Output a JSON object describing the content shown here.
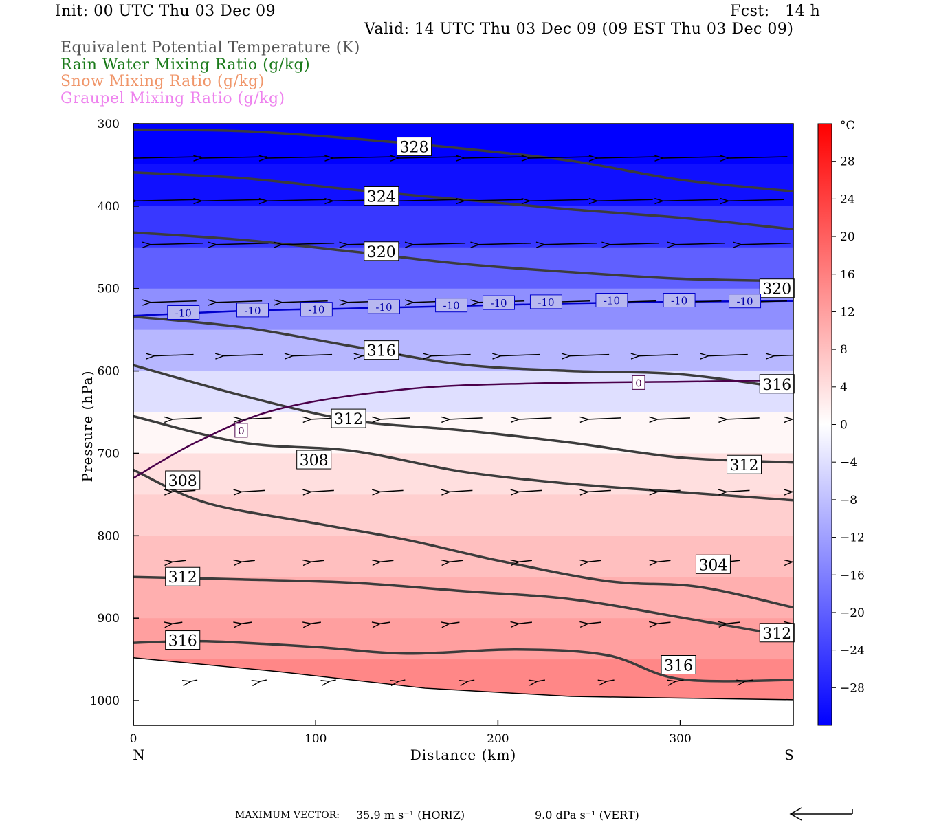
{
  "header": {
    "init": "Init: 00 UTC Thu 03 Dec 09",
    "fcst": "Fcst:   14 h",
    "valid": "Valid: 14 UTC Thu 03 Dec 09 (09 EST Thu 03 Dec 09)"
  },
  "fields": [
    {
      "label": "Equivalent Potential Temperature (K)",
      "color": "#555555"
    },
    {
      "label": "Rain Water Mixing Ratio (g/kg)",
      "color": "#1a7a1a"
    },
    {
      "label": "Snow Mixing Ratio (g/kg)",
      "color": "#f0966a"
    },
    {
      "label": "Graupel Mixing Ratio (g/kg)",
      "color": "#ee82ee"
    }
  ],
  "footer": {
    "max_vector_label": "MAXIMUM VECTOR:",
    "horiz": "35.9 m s⁻¹ (HORIZ)",
    "vert": "9.0 dPa s⁻¹ (VERT)"
  },
  "chart_data": {
    "type": "heatmap",
    "title": "",
    "xlabel": "Distance (km)",
    "ylabel": "Pressure (hPa)",
    "xlim": [
      0,
      362
    ],
    "ylim": [
      1030,
      300
    ],
    "x_ticks": [
      0,
      100,
      200,
      300
    ],
    "y_ticks": [
      300,
      400,
      500,
      600,
      700,
      800,
      900,
      1000
    ],
    "x_end_labels": {
      "left": "N",
      "right": "S"
    },
    "colorbar": {
      "unit": "°C",
      "tick_labels": [
        28,
        24,
        20,
        16,
        12,
        8,
        4,
        0,
        -4,
        -8,
        -12,
        -16,
        -20,
        -24,
        -28
      ],
      "range": [
        -32,
        32
      ],
      "color_negative": "#0000ff",
      "color_positive": "#ff0000"
    },
    "temperature_shading_by_pressure": [
      {
        "p": 300,
        "t": -34
      },
      {
        "p": 350,
        "t": -30
      },
      {
        "p": 400,
        "t": -25
      },
      {
        "p": 450,
        "t": -20
      },
      {
        "p": 500,
        "t": -14
      },
      {
        "p": 550,
        "t": -9
      },
      {
        "p": 600,
        "t": -4
      },
      {
        "p": 650,
        "t": 1
      },
      {
        "p": 700,
        "t": 4
      },
      {
        "p": 750,
        "t": 6
      },
      {
        "p": 800,
        "t": 8
      },
      {
        "p": 850,
        "t": 10
      },
      {
        "p": 900,
        "t": 12
      },
      {
        "p": 950,
        "t": 15
      },
      {
        "p": 1000,
        "t": 16
      }
    ],
    "theta_e_contours": [
      {
        "label": "328",
        "points": [
          [
            0,
            307
          ],
          [
            60,
            309
          ],
          [
            120,
            318
          ],
          [
            180,
            330
          ],
          [
            240,
            345
          ],
          [
            300,
            368
          ],
          [
            362,
            382
          ]
        ]
      },
      {
        "label": "324",
        "points": [
          [
            0,
            359
          ],
          [
            60,
            366
          ],
          [
            120,
            380
          ],
          [
            180,
            392
          ],
          [
            240,
            404
          ],
          [
            300,
            414
          ],
          [
            362,
            428
          ]
        ]
      },
      {
        "label": "320",
        "points": [
          [
            0,
            432
          ],
          [
            60,
            441
          ],
          [
            120,
            455
          ],
          [
            180,
            470
          ],
          [
            240,
            480
          ],
          [
            300,
            488
          ],
          [
            362,
            491
          ]
        ]
      },
      {
        "label": "316",
        "points": [
          [
            0,
            534
          ],
          [
            60,
            547
          ],
          [
            120,
            570
          ],
          [
            180,
            592
          ],
          [
            240,
            600
          ],
          [
            300,
            604
          ],
          [
            362,
            622
          ]
        ]
      },
      {
        "label": "312",
        "points": [
          [
            0,
            593
          ],
          [
            60,
            630
          ],
          [
            120,
            660
          ],
          [
            180,
            672
          ],
          [
            240,
            687
          ],
          [
            300,
            705
          ],
          [
            362,
            711
          ]
        ]
      },
      {
        "label": "308",
        "points": [
          [
            0,
            655
          ],
          [
            60,
            687
          ],
          [
            120,
            697
          ],
          [
            180,
            722
          ],
          [
            240,
            737
          ],
          [
            300,
            747
          ],
          [
            362,
            757
          ]
        ]
      },
      {
        "label": "304",
        "points": [
          [
            0,
            720
          ],
          [
            40,
            760
          ],
          [
            100,
            785
          ],
          [
            150,
            805
          ],
          [
            200,
            830
          ],
          [
            260,
            855
          ],
          [
            310,
            862
          ],
          [
            362,
            887
          ]
        ]
      },
      {
        "label": "312",
        "points": [
          [
            0,
            850
          ],
          [
            60,
            853
          ],
          [
            120,
            857
          ],
          [
            180,
            867
          ],
          [
            240,
            877
          ],
          [
            300,
            899
          ],
          [
            362,
            923
          ]
        ]
      },
      {
        "label": "316",
        "points": [
          [
            0,
            930
          ],
          [
            40,
            928
          ],
          [
            100,
            935
          ],
          [
            150,
            943
          ],
          [
            210,
            938
          ],
          [
            260,
            945
          ],
          [
            300,
            974
          ],
          [
            362,
            975
          ]
        ]
      }
    ],
    "isotherms": [
      {
        "label": "-10",
        "color": "#0000cc",
        "points": [
          [
            0,
            533
          ],
          [
            60,
            527
          ],
          [
            120,
            524
          ],
          [
            180,
            521
          ],
          [
            240,
            518
          ],
          [
            300,
            516
          ],
          [
            362,
            515
          ]
        ]
      },
      {
        "label": "0",
        "color": "#4a004a",
        "points": [
          [
            0,
            730
          ],
          [
            35,
            686
          ],
          [
            80,
            646
          ],
          [
            150,
            622
          ],
          [
            220,
            615
          ],
          [
            300,
            613
          ],
          [
            362,
            611
          ]
        ]
      }
    ],
    "isotherm_labels": [
      {
        "text": "-10",
        "x": 18,
        "p": 529
      },
      {
        "text": "-10",
        "x": 56,
        "p": 526
      },
      {
        "text": "-10",
        "x": 91,
        "p": 525
      },
      {
        "text": "-10",
        "x": 128,
        "p": 522
      },
      {
        "text": "-10",
        "x": 165,
        "p": 520
      },
      {
        "text": "-10",
        "x": 191,
        "p": 517
      },
      {
        "text": "-10",
        "x": 217,
        "p": 516
      },
      {
        "text": "-10",
        "x": 253,
        "p": 514
      },
      {
        "text": "-10",
        "x": 290,
        "p": 514
      },
      {
        "text": "-10",
        "x": 326,
        "p": 515
      },
      {
        "text": "0",
        "x": 273,
        "p": 614
      },
      {
        "text": "0",
        "x": 55,
        "p": 672
      }
    ],
    "theta_e_labels": [
      {
        "text": "328",
        "x": 145,
        "p": 328
      },
      {
        "text": "324",
        "x": 127,
        "p": 388
      },
      {
        "text": "320",
        "x": 127,
        "p": 455
      },
      {
        "text": "320",
        "x": 344,
        "p": 500
      },
      {
        "text": "316",
        "x": 127,
        "p": 575
      },
      {
        "text": "316",
        "x": 344,
        "p": 616
      },
      {
        "text": "312",
        "x": 109,
        "p": 658
      },
      {
        "text": "308",
        "x": 90,
        "p": 708
      },
      {
        "text": "312",
        "x": 326,
        "p": 714
      },
      {
        "text": "308",
        "x": 18,
        "p": 733
      },
      {
        "text": "304",
        "x": 309,
        "p": 835
      },
      {
        "text": "312",
        "x": 18,
        "p": 850
      },
      {
        "text": "312",
        "x": 344,
        "p": 918
      },
      {
        "text": "316",
        "x": 18,
        "p": 927
      },
      {
        "text": "316",
        "x": 290,
        "p": 957
      }
    ],
    "terrain_pressure": [
      [
        0,
        948
      ],
      [
        80,
        965
      ],
      [
        160,
        985
      ],
      [
        240,
        995
      ],
      [
        300,
        997
      ],
      [
        362,
        999
      ]
    ],
    "wind_vectors": [
      {
        "p": 340,
        "x": [
          0,
          36,
          72,
          108,
          144,
          180,
          216,
          253,
          289,
          325
        ],
        "len": [
          1.0,
          1.0,
          0.95,
          0.95,
          0.95,
          0.95,
          0.95,
          0.9,
          0.9,
          0.9
        ]
      },
      {
        "p": 392,
        "x": [
          0,
          36,
          72,
          108,
          144,
          180,
          216,
          253,
          289,
          325
        ],
        "len": [
          0.95,
          0.95,
          0.9,
          0.9,
          0.9,
          0.9,
          0.9,
          0.85,
          0.85,
          0.85
        ]
      },
      {
        "p": 445,
        "x": [
          8,
          44,
          80,
          116,
          152,
          188,
          224,
          260,
          296,
          332
        ],
        "len": [
          0.8,
          0.8,
          0.8,
          0.8,
          0.8,
          0.8,
          0.8,
          0.75,
          0.75,
          0.75
        ]
      },
      {
        "p": 515,
        "x": [
          8,
          44,
          80,
          116,
          152,
          188,
          224,
          260,
          296,
          332
        ],
        "len": [
          0.7,
          0.7,
          0.7,
          0.7,
          0.7,
          0.7,
          0.7,
          0.7,
          0.7,
          0.7
        ]
      },
      {
        "p": 580,
        "x": [
          10,
          48,
          86,
          124,
          162,
          200,
          238,
          276,
          314,
          350
        ],
        "len": [
          0.6,
          0.6,
          0.6,
          0.6,
          0.6,
          0.6,
          0.6,
          0.6,
          0.6,
          0.6
        ]
      },
      {
        "p": 657,
        "x": [
          20,
          58,
          96,
          134,
          172,
          210,
          248,
          286,
          324,
          360
        ],
        "len": [
          0.45,
          0.45,
          0.45,
          0.45,
          0.5,
          0.5,
          0.5,
          0.5,
          0.5,
          0.5
        ]
      },
      {
        "p": 745,
        "x": [
          20,
          58,
          96,
          134,
          172,
          210,
          248,
          286,
          324,
          360
        ],
        "len": [
          0.35,
          0.35,
          0.35,
          0.35,
          0.35,
          0.35,
          0.35,
          0.35,
          0.35,
          0.35
        ]
      },
      {
        "p": 830,
        "x": [
          20,
          58,
          96,
          134,
          172,
          210,
          248,
          286,
          324,
          360
        ],
        "len": [
          0.2,
          0.2,
          0.2,
          0.2,
          0.2,
          0.2,
          0.2,
          0.2,
          0.2,
          0.2
        ]
      },
      {
        "p": 905,
        "x": [
          20,
          58,
          96,
          134,
          172,
          210,
          248,
          286,
          324,
          360
        ],
        "len": [
          0.15,
          0.15,
          0.15,
          0.15,
          0.15,
          0.2,
          0.2,
          0.2,
          0.2,
          0.2
        ]
      },
      {
        "p": 975,
        "x": [
          30,
          68,
          106,
          144,
          182,
          220,
          258,
          296,
          334
        ],
        "len": [
          0.1,
          0.1,
          0.1,
          0.1,
          0.1,
          0.12,
          0.12,
          0.12,
          0.12
        ]
      }
    ]
  }
}
